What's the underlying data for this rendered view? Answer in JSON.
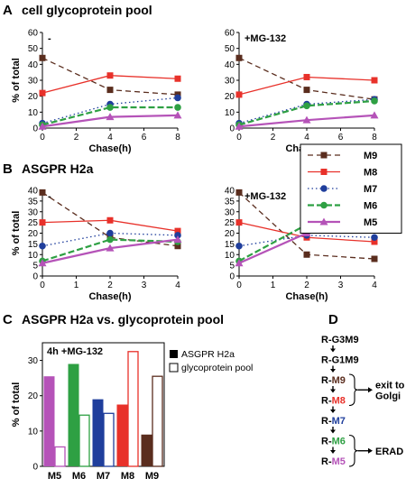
{
  "panels": {
    "A": {
      "letter": "A",
      "title": "cell glycoprotein pool"
    },
    "B": {
      "letter": "B",
      "title": "ASGPR H2a"
    },
    "C": {
      "letter": "C",
      "title": "ASGPR H2a vs. glycoprotein pool"
    },
    "D": {
      "letter": "D"
    }
  },
  "colors": {
    "M9": "#5a2d1e",
    "M8": "#e8312a",
    "M7": "#1f3e9c",
    "M6": "#2ea043",
    "M5": "#b553b8"
  },
  "legend": [
    {
      "name": "M9",
      "style": "dash-square",
      "color": "#5a2d1e"
    },
    {
      "name": "M8",
      "style": "solid-square",
      "color": "#e8312a"
    },
    {
      "name": "M7",
      "style": "dot-circle",
      "color": "#1f3e9c"
    },
    {
      "name": "M6",
      "style": "dash-circle",
      "color": "#2ea043"
    },
    {
      "name": "M5",
      "style": "solid-triangle",
      "color": "#b553b8"
    }
  ],
  "chart_data": [
    {
      "id": "A-left",
      "type": "line",
      "title": "cell glycoprotein pool",
      "annotation": "-",
      "xlabel": "Chase(h)",
      "ylabel": "% of total",
      "xlim": [
        0,
        8
      ],
      "ylim": [
        0,
        60
      ],
      "xticks": [
        0,
        2,
        4,
        6,
        8
      ],
      "yticks": [
        0,
        10,
        20,
        30,
        40,
        50,
        60
      ],
      "x": [
        0,
        4,
        8
      ],
      "series": [
        {
          "name": "M9",
          "values": [
            44,
            24,
            21
          ]
        },
        {
          "name": "M8",
          "values": [
            22,
            33,
            31
          ]
        },
        {
          "name": "M7",
          "values": [
            3,
            15,
            19
          ]
        },
        {
          "name": "M6",
          "values": [
            2,
            13,
            13
          ]
        },
        {
          "name": "M5",
          "values": [
            1,
            7,
            8
          ]
        }
      ]
    },
    {
      "id": "A-right",
      "type": "line",
      "annotation": "+MG-132",
      "xlabel": "Chase(h)",
      "ylabel": "",
      "xlim": [
        0,
        8
      ],
      "ylim": [
        0,
        60
      ],
      "xticks": [
        0,
        2,
        4,
        6,
        8
      ],
      "yticks": [
        0,
        10,
        20,
        30,
        40,
        50,
        60
      ],
      "x": [
        0,
        4,
        8
      ],
      "series": [
        {
          "name": "M9",
          "values": [
            44,
            24,
            18
          ]
        },
        {
          "name": "M8",
          "values": [
            21,
            32,
            30
          ]
        },
        {
          "name": "M7",
          "values": [
            3,
            15,
            18
          ]
        },
        {
          "name": "M6",
          "values": [
            2,
            14,
            17
          ]
        },
        {
          "name": "M5",
          "values": [
            1,
            5,
            8
          ]
        }
      ]
    },
    {
      "id": "B-left",
      "type": "line",
      "title": "ASGPR H2a",
      "annotation": "-",
      "xlabel": "Chase(h)",
      "ylabel": "% of total",
      "xlim": [
        0,
        4
      ],
      "ylim": [
        0,
        40
      ],
      "xticks": [
        0,
        1,
        2,
        3,
        4
      ],
      "yticks": [
        0,
        5,
        10,
        15,
        20,
        25,
        30,
        35,
        40
      ],
      "x": [
        0,
        2,
        4
      ],
      "series": [
        {
          "name": "M9",
          "values": [
            39,
            18,
            14
          ]
        },
        {
          "name": "M8",
          "values": [
            25,
            26,
            21
          ]
        },
        {
          "name": "M7",
          "values": [
            14,
            20,
            19
          ]
        },
        {
          "name": "M6",
          "values": [
            7,
            17,
            16
          ]
        },
        {
          "name": "M5",
          "values": [
            6,
            13,
            17
          ]
        }
      ]
    },
    {
      "id": "B-right",
      "type": "line",
      "annotation": "+MG-132",
      "xlabel": "Chase(h)",
      "ylabel": "",
      "xlim": [
        0,
        4
      ],
      "ylim": [
        0,
        40
      ],
      "xticks": [
        0,
        1,
        2,
        3,
        4
      ],
      "yticks": [
        0,
        5,
        10,
        15,
        20,
        25,
        30,
        35,
        40
      ],
      "x": [
        0,
        2,
        4
      ],
      "series": [
        {
          "name": "M9",
          "values": [
            39,
            10,
            8
          ]
        },
        {
          "name": "M8",
          "values": [
            25,
            18,
            16
          ]
        },
        {
          "name": "M7",
          "values": [
            14,
            19,
            18
          ]
        },
        {
          "name": "M6",
          "values": [
            7,
            24,
            27
          ]
        },
        {
          "name": "M5",
          "values": [
            6,
            20,
            24
          ]
        }
      ]
    },
    {
      "id": "C",
      "type": "bar",
      "title": "ASGPR H2a vs. glycoprotein pool",
      "annotation": "4h +MG-132",
      "xlabel": "",
      "ylabel": "% of total",
      "ylim": [
        0,
        35
      ],
      "yticks": [
        0,
        10,
        20,
        30
      ],
      "categories": [
        "M5",
        "M6",
        "M7",
        "M8",
        "M9"
      ],
      "series": [
        {
          "name": "ASGPR H2a",
          "fill": "solid",
          "values": [
            25.5,
            29,
            19,
            17.5,
            9
          ]
        },
        {
          "name": "glycoprotein pool",
          "fill": "open",
          "values": [
            5.5,
            14.5,
            15,
            32.5,
            25.5
          ]
        }
      ]
    }
  ],
  "diagram_D": {
    "steps": [
      {
        "prefix": "R-",
        "name": "G3M9",
        "color": "#000000"
      },
      {
        "prefix": "R-",
        "name": "G1M9",
        "color": "#000000"
      },
      {
        "prefix": "R-",
        "name": "M9",
        "color": "#5a2d1e"
      },
      {
        "prefix": "R-",
        "name": "M8",
        "color": "#e8312a"
      },
      {
        "prefix": "R-",
        "name": "M7",
        "color": "#1f3e9c"
      },
      {
        "prefix": "R-",
        "name": "M6",
        "color": "#2ea043"
      },
      {
        "prefix": "R-",
        "name": "M5",
        "color": "#b553b8"
      }
    ],
    "golgi_label": "exit to\nGolgi",
    "erad_label": "ERAD"
  }
}
